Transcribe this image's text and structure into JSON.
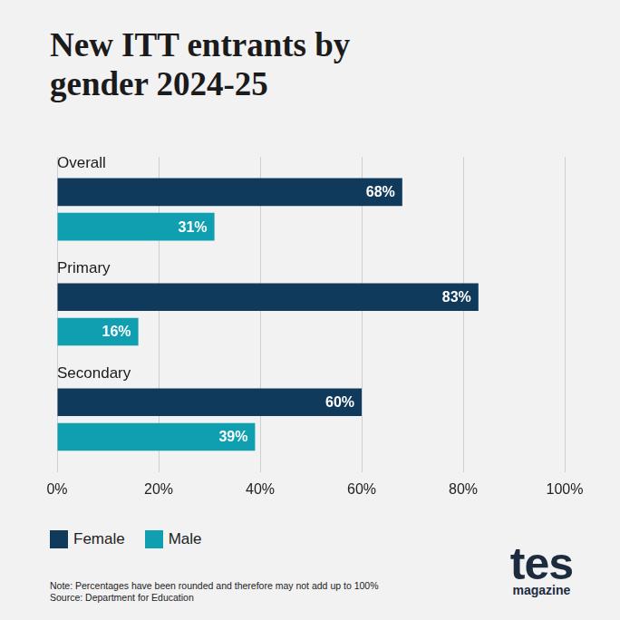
{
  "chart_data": {
    "type": "bar",
    "orientation": "horizontal",
    "title": "New ITT entrants by gender 2024-25",
    "categories": [
      "Overall",
      "Primary",
      "Secondary"
    ],
    "series": [
      {
        "name": "Female",
        "color": "#0f3a5c",
        "values": [
          68,
          83,
          60
        ],
        "value_labels": [
          "68%",
          "83%",
          "60%"
        ]
      },
      {
        "name": "Male",
        "color": "#109fb1",
        "values": [
          31,
          16,
          39
        ],
        "value_labels": [
          "31%",
          "16%",
          "39%"
        ]
      }
    ],
    "xlim": [
      0,
      100
    ],
    "xticks": [
      {
        "value": 0,
        "label": "0%"
      },
      {
        "value": 20,
        "label": "20%"
      },
      {
        "value": 40,
        "label": "40%"
      },
      {
        "value": 60,
        "label": "60%"
      },
      {
        "value": 80,
        "label": "80%"
      },
      {
        "value": 100,
        "label": "100%"
      }
    ],
    "grid": true,
    "legend": "bottom-left",
    "data_labels": true,
    "annotations": [
      "Note: Percentages have been rounded and therefore may not add up to 100%",
      "Source: Department for Education"
    ]
  },
  "logo": {
    "name": "tes",
    "subtitle": "magazine"
  }
}
